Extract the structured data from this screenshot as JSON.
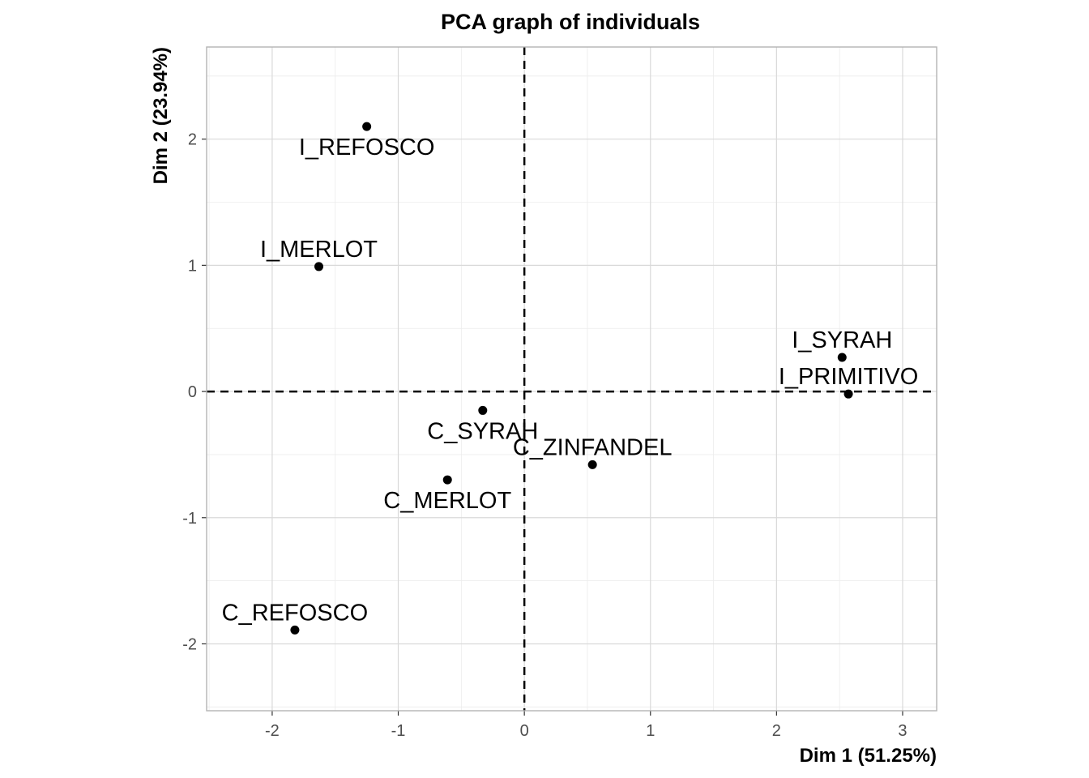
{
  "chart_data": {
    "type": "scatter",
    "title": "PCA graph of individuals",
    "xlabel": "Dim 1 (51.25%)",
    "ylabel": "Dim 2 (23.94%)",
    "xlim": [
      -2.52,
      3.27
    ],
    "ylim": [
      -2.53,
      2.73
    ],
    "x_ticks": [
      -2,
      -1,
      0,
      1,
      2,
      3
    ],
    "y_ticks": [
      -2,
      -1,
      0,
      1,
      2
    ],
    "grid": true,
    "reference_lines": {
      "x": 0,
      "y": 0,
      "style": "dashed"
    },
    "point_color": "#000000",
    "points": [
      {
        "label": "I_REFOSCO",
        "x": -1.25,
        "y": 2.1,
        "label_position": "below"
      },
      {
        "label": "I_MERLOT",
        "x": -1.63,
        "y": 0.99,
        "label_position": "above"
      },
      {
        "label": "I_SYRAH",
        "x": 2.52,
        "y": 0.27,
        "label_position": "above"
      },
      {
        "label": "I_PRIMITIVO",
        "x": 2.57,
        "y": -0.02,
        "label_position": "above"
      },
      {
        "label": "C_SYRAH",
        "x": -0.33,
        "y": -0.15,
        "label_position": "below"
      },
      {
        "label": "C_ZINFANDEL",
        "x": 0.54,
        "y": -0.58,
        "label_position": "above"
      },
      {
        "label": "C_MERLOT",
        "x": -0.61,
        "y": -0.7,
        "label_position": "below"
      },
      {
        "label": "C_REFOSCO",
        "x": -1.82,
        "y": -1.89,
        "label_position": "above"
      }
    ]
  }
}
